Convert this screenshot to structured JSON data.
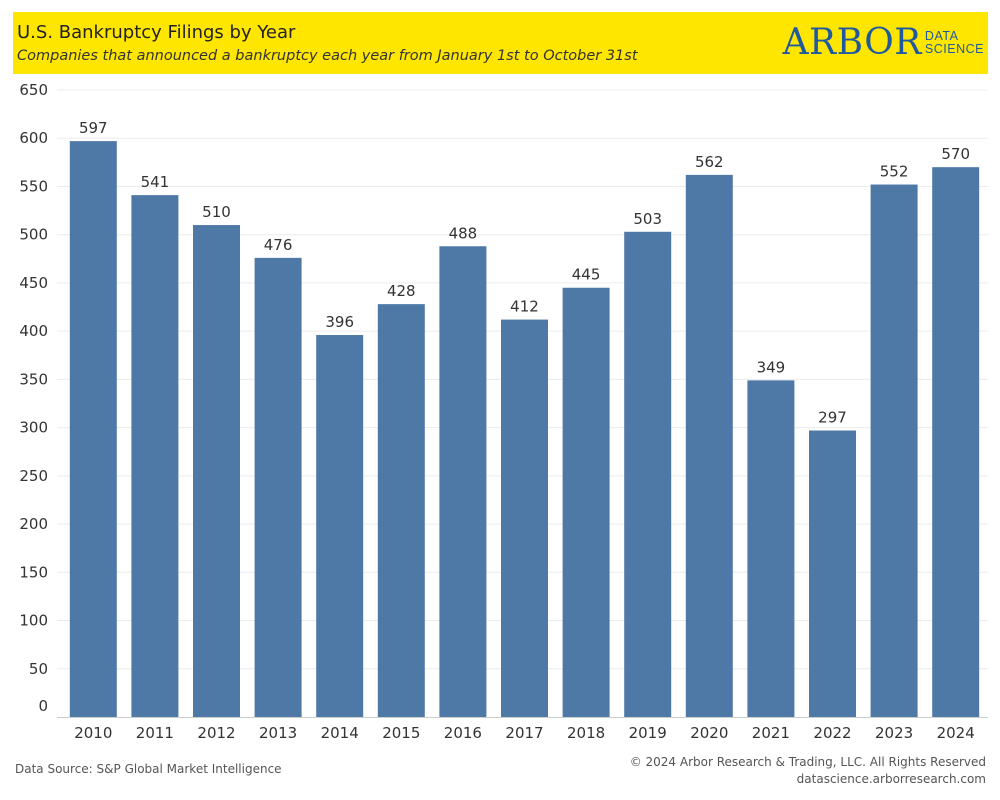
{
  "header": {
    "title": "U.S. Bankruptcy Filings by Year",
    "subtitle": "Companies that announced a bankruptcy each year from  January 1st to October 31st",
    "logo_main": "ARBOR",
    "logo_sub_1": "DATA",
    "logo_sub_2": "SCIENCE",
    "background": "#ffe600",
    "logo_color": "#1f5a9e"
  },
  "chart_data": {
    "type": "bar",
    "categories": [
      "2010",
      "2011",
      "2012",
      "2013",
      "2014",
      "2015",
      "2016",
      "2017",
      "2018",
      "2019",
      "2020",
      "2021",
      "2022",
      "2023",
      "2024"
    ],
    "values": [
      597,
      541,
      510,
      476,
      396,
      428,
      488,
      412,
      445,
      503,
      562,
      349,
      297,
      552,
      570
    ],
    "ylim": [
      0,
      650
    ],
    "yticks": [
      0,
      50,
      100,
      150,
      200,
      250,
      300,
      350,
      400,
      450,
      500,
      550,
      600,
      650
    ],
    "grid": true,
    "bar_color": "#4e79a7",
    "data_labels": true
  },
  "footer": {
    "source": "Data Source: S&P Global Market Intelligence",
    "copyright": "© 2024 Arbor Research & Trading, LLC. All Rights Reserved",
    "website": "datascience.arborresearch.com"
  }
}
